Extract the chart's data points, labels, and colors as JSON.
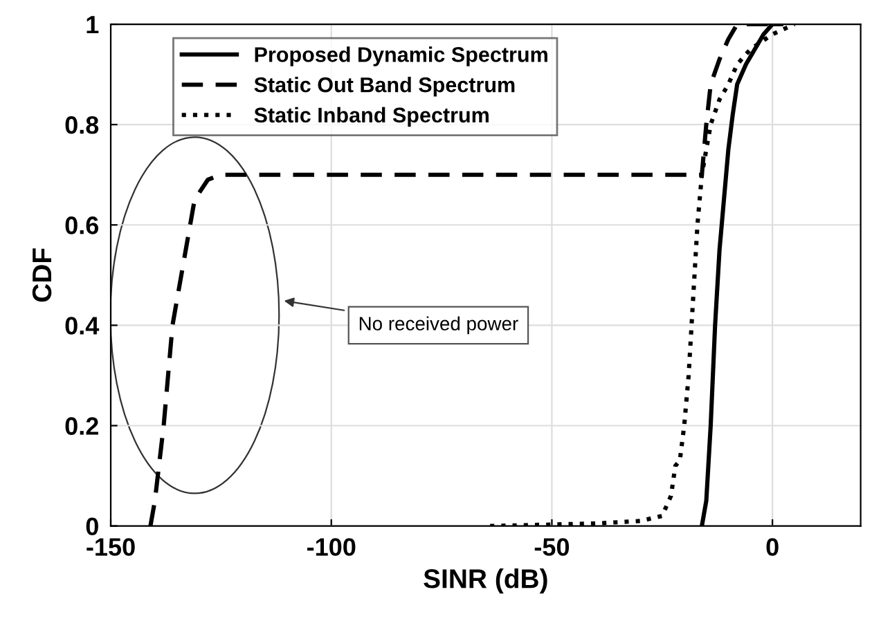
{
  "chart_data": {
    "type": "line",
    "xlabel": "SINR (dB)",
    "ylabel": "CDF",
    "xlim": [
      -150,
      20
    ],
    "ylim": [
      0,
      1
    ],
    "xticks": [
      -150,
      -100,
      -50,
      0
    ],
    "yticks": [
      0,
      0.2,
      0.4,
      0.6,
      0.8,
      1
    ],
    "grid": true,
    "legend": "top left",
    "annotations": [
      "No received power"
    ],
    "series": [
      {
        "name": "Proposed Dynamic Spectrum",
        "color": "#000000",
        "line_style": "solid",
        "x": [
          -16,
          -15,
          -14,
          -13,
          -12,
          -11,
          -10,
          -9,
          -8,
          -6,
          -4,
          -2,
          0,
          2
        ],
        "values": [
          0,
          0.05,
          0.2,
          0.4,
          0.55,
          0.65,
          0.75,
          0.82,
          0.88,
          0.92,
          0.95,
          0.98,
          1,
          1
        ]
      },
      {
        "name": "Static Out Band Spectrum",
        "color": "#000000",
        "line_style": "dashed",
        "x": [
          -141,
          -140,
          -138,
          -136,
          -134,
          -132,
          -131,
          -128,
          -125,
          -16,
          -15,
          -14,
          -12,
          -10,
          -8,
          0
        ],
        "values": [
          0,
          0.05,
          0.2,
          0.4,
          0.5,
          0.6,
          0.65,
          0.69,
          0.7,
          0.7,
          0.8,
          0.88,
          0.93,
          0.97,
          1,
          1
        ]
      },
      {
        "name": "Static Inband Spectrum",
        "color": "#000000",
        "line_style": "dotted",
        "x": [
          -64,
          -40,
          -30,
          -25,
          -23,
          -22,
          -21,
          -20,
          -19,
          -18,
          -17,
          -16,
          -14,
          -12,
          -10,
          -8,
          -5,
          0,
          5
        ],
        "values": [
          0,
          0.005,
          0.01,
          0.02,
          0.06,
          0.12,
          0.13,
          0.2,
          0.3,
          0.45,
          0.6,
          0.7,
          0.8,
          0.85,
          0.88,
          0.92,
          0.95,
          0.98,
          1
        ]
      }
    ]
  }
}
